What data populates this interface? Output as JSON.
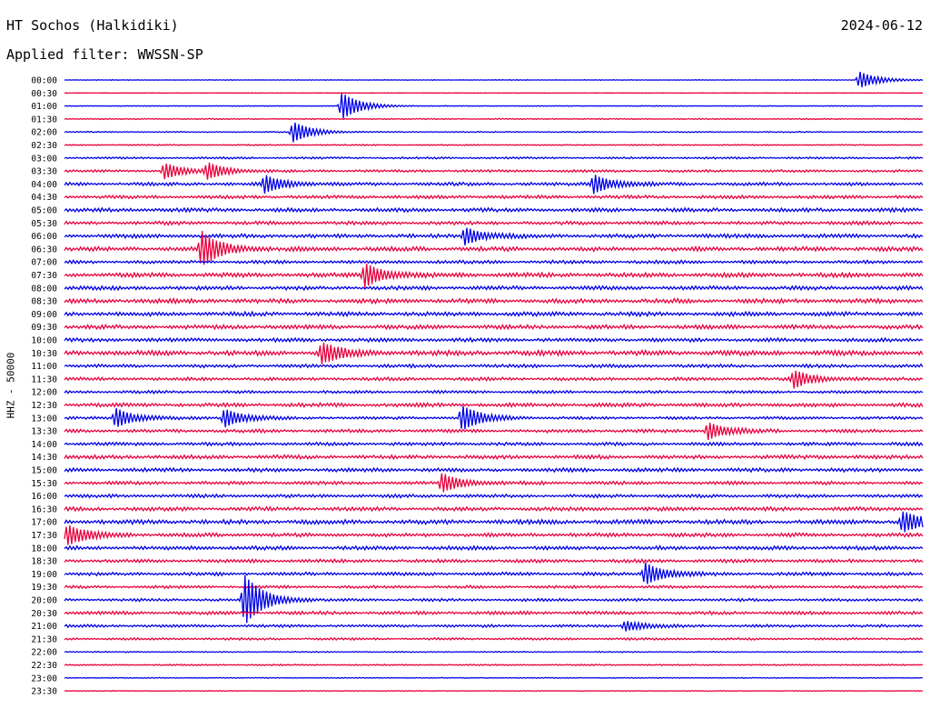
{
  "header": {
    "station": "HT Sochos (Halkidiki)",
    "date": "2024-06-12",
    "filter": "Applied filter: WWSSN-SP"
  },
  "y_axis_label": "HHZ - 50000",
  "chart_data": {
    "type": "line",
    "title": "HT Sochos (Halkidiki)",
    "xlabel": "",
    "ylabel": "HHZ - 50000",
    "trace_colors": [
      "#0000e8",
      "#e8003c"
    ],
    "categories": [
      "00:00",
      "00:30",
      "01:00",
      "01:30",
      "02:00",
      "02:30",
      "03:00",
      "03:30",
      "04:00",
      "04:30",
      "05:00",
      "05:30",
      "06:00",
      "06:30",
      "07:00",
      "07:30",
      "08:00",
      "08:30",
      "09:00",
      "09:30",
      "10:00",
      "10:30",
      "11:00",
      "11:30",
      "12:00",
      "12:30",
      "13:00",
      "13:30",
      "14:00",
      "14:30",
      "15:00",
      "15:30",
      "16:00",
      "16:30",
      "17:00",
      "17:30",
      "18:00",
      "18:30",
      "19:00",
      "19:30",
      "20:00",
      "20:30",
      "21:00",
      "21:30",
      "22:00",
      "22:30",
      "23:00",
      "23:30"
    ],
    "noise_level": [
      0.05,
      0.04,
      0.06,
      0.1,
      0.1,
      0.1,
      0.18,
      0.22,
      0.3,
      0.3,
      0.35,
      0.32,
      0.35,
      0.4,
      0.3,
      0.4,
      0.35,
      0.4,
      0.38,
      0.38,
      0.35,
      0.45,
      0.3,
      0.3,
      0.25,
      0.35,
      0.25,
      0.3,
      0.3,
      0.35,
      0.35,
      0.3,
      0.3,
      0.35,
      0.4,
      0.35,
      0.35,
      0.3,
      0.3,
      0.25,
      0.25,
      0.3,
      0.25,
      0.2,
      0.1,
      0.12,
      0.08,
      0.06
    ],
    "events": [
      {
        "row": "00:00",
        "minute": 27.8,
        "amplitude": 1.0
      },
      {
        "row": "01:00",
        "minute": 9.7,
        "amplitude": 1.6
      },
      {
        "row": "02:00",
        "minute": 8.0,
        "amplitude": 1.2
      },
      {
        "row": "03:30",
        "minute": 3.5,
        "amplitude": 0.9
      },
      {
        "row": "03:30",
        "minute": 5.0,
        "amplitude": 0.9
      },
      {
        "row": "04:00",
        "minute": 7.0,
        "amplitude": 1.0
      },
      {
        "row": "04:00",
        "minute": 18.5,
        "amplitude": 1.1
      },
      {
        "row": "06:00",
        "minute": 14.0,
        "amplitude": 1.0
      },
      {
        "row": "06:30",
        "minute": 4.8,
        "amplitude": 2.0
      },
      {
        "row": "07:30",
        "minute": 10.5,
        "amplitude": 1.4
      },
      {
        "row": "10:30",
        "minute": 9.0,
        "amplitude": 1.2
      },
      {
        "row": "11:30",
        "minute": 25.5,
        "amplitude": 1.0
      },
      {
        "row": "13:00",
        "minute": 1.8,
        "amplitude": 1.1
      },
      {
        "row": "13:00",
        "minute": 5.6,
        "amplitude": 1.1
      },
      {
        "row": "13:00",
        "minute": 13.9,
        "amplitude": 1.5
      },
      {
        "row": "13:30",
        "minute": 22.5,
        "amplitude": 1.0
      },
      {
        "row": "15:30",
        "minute": 13.2,
        "amplitude": 1.1
      },
      {
        "row": "17:00",
        "minute": 29.3,
        "amplitude": 1.2
      },
      {
        "row": "17:30",
        "minute": 0.1,
        "amplitude": 1.2
      },
      {
        "row": "19:00",
        "minute": 20.3,
        "amplitude": 1.3
      },
      {
        "row": "20:00",
        "minute": 6.3,
        "amplitude": 3.0
      },
      {
        "row": "21:00",
        "minute": 19.6,
        "amplitude": 0.6
      }
    ]
  }
}
